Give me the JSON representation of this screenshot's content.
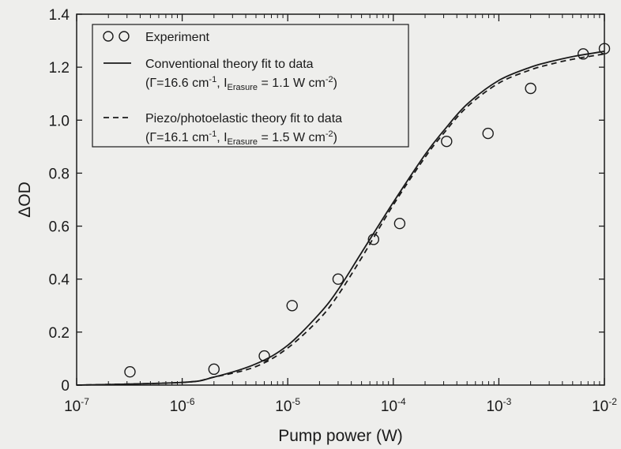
{
  "chart_data": {
    "type": "scatter",
    "xlabel": "Pump power (W)",
    "ylabel": "ΔOD",
    "x_scale": "log",
    "xlim": [
      1e-07,
      0.01
    ],
    "ylim": [
      0,
      1.4
    ],
    "grid": false,
    "legend_position": "top-left",
    "x_ticks": [
      {
        "value": 1e-07,
        "base": "10",
        "exp": "-7"
      },
      {
        "value": 1e-06,
        "base": "10",
        "exp": "-6"
      },
      {
        "value": 1e-05,
        "base": "10",
        "exp": "-5"
      },
      {
        "value": 0.0001,
        "base": "10",
        "exp": "-4"
      },
      {
        "value": 0.001,
        "base": "10",
        "exp": "-3"
      },
      {
        "value": 0.01,
        "base": "10",
        "exp": "-2"
      }
    ],
    "y_ticks": [
      {
        "value": 0,
        "label": "0"
      },
      {
        "value": 0.2,
        "label": "0.2"
      },
      {
        "value": 0.4,
        "label": "0.4"
      },
      {
        "value": 0.6,
        "label": "0.6"
      },
      {
        "value": 0.8,
        "label": "0.8"
      },
      {
        "value": 1.0,
        "label": "1.0"
      },
      {
        "value": 1.2,
        "label": "1.2"
      },
      {
        "value": 1.4,
        "label": "1.4"
      }
    ],
    "experiment": {
      "name": "Experiment",
      "x": [
        3.2e-07,
        2e-06,
        6e-06,
        1.1e-05,
        3e-05,
        6.5e-05,
        0.000115,
        0.00032,
        0.00079,
        0.002,
        0.0063,
        0.01
      ],
      "y": [
        0.05,
        0.06,
        0.11,
        0.3,
        0.4,
        0.55,
        0.61,
        0.92,
        0.95,
        1.12,
        1.25,
        1.27
      ]
    },
    "conventional_fit": {
      "name": "Conventional theory fit to data",
      "params": {
        "gamma": "Γ=16.6 cm",
        "gamma_sup": "-1",
        "i_label": ", I",
        "i_sub": "Erasure",
        "i_value": " = 1.1 W cm",
        "i_sup": "-2"
      },
      "x": [
        1e-07,
        1e-06,
        2e-06,
        5e-06,
        1e-05,
        2e-05,
        3e-05,
        5e-05,
        0.0001,
        0.0002,
        0.0003,
        0.0005,
        0.001,
        0.002,
        0.003,
        0.005,
        0.01
      ],
      "y": [
        0.0,
        0.01,
        0.03,
        0.08,
        0.15,
        0.27,
        0.36,
        0.5,
        0.69,
        0.87,
        0.96,
        1.06,
        1.15,
        1.2,
        1.22,
        1.24,
        1.26
      ]
    },
    "piezo_fit": {
      "name": "Piezo/photoelastic theory fit to data",
      "params": {
        "gamma": "Γ=16.1 cm",
        "gamma_sup": "-1",
        "i_label": ", I",
        "i_sub": "Erasure",
        "i_value": " = 1.5 W cm",
        "i_sup": "-2"
      },
      "x": [
        1e-07,
        1e-06,
        2e-06,
        5e-06,
        1e-05,
        2e-05,
        3e-05,
        5e-05,
        0.0001,
        0.0002,
        0.0003,
        0.0005,
        0.001,
        0.002,
        0.003,
        0.005,
        0.01
      ],
      "y": [
        0.0,
        0.01,
        0.03,
        0.07,
        0.14,
        0.25,
        0.34,
        0.48,
        0.68,
        0.86,
        0.95,
        1.05,
        1.14,
        1.19,
        1.21,
        1.23,
        1.25
      ]
    }
  }
}
